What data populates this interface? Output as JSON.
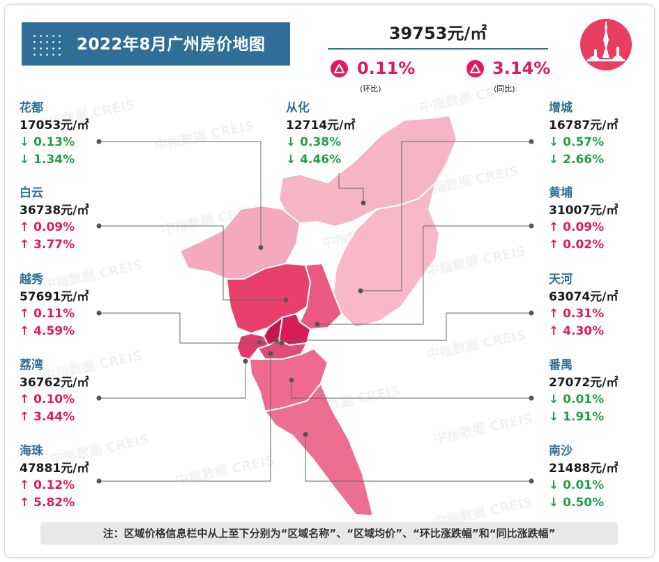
{
  "header": {
    "title": "2022年8月广州房价地图",
    "avg_price": "39753元/㎡",
    "mom": {
      "value": "0.11%",
      "caption": "(环比)",
      "direction": "up"
    },
    "yoy": {
      "value": "3.14%",
      "caption": "(同比)",
      "direction": "up"
    }
  },
  "watermark": "中指数据 CREIS",
  "colors": {
    "title_bg": "#2f6f97",
    "up": "#e0195a",
    "down": "#1f9f4a",
    "name": "#2f6f97",
    "badge": "#e0195a",
    "landmark_bg": "#e83e5f"
  },
  "icons": {
    "landmark": "canton-tower-icon",
    "up": "triangle-up-icon"
  },
  "districts": {
    "huadu": {
      "name": "花都",
      "price": "17053元/㎡",
      "mom": "↓ 0.13%",
      "yoy": "↓ 1.34%",
      "mom_dir": "down",
      "yoy_dir": "down"
    },
    "baiyun": {
      "name": "白云",
      "price": "36738元/㎡",
      "mom": "↑ 0.09%",
      "yoy": "↑ 3.77%",
      "mom_dir": "up",
      "yoy_dir": "up"
    },
    "yuexiu": {
      "name": "越秀",
      "price": "57691元/㎡",
      "mom": "↑ 0.11%",
      "yoy": "↑ 4.59%",
      "mom_dir": "up",
      "yoy_dir": "up"
    },
    "liwan": {
      "name": "荔湾",
      "price": "36762元/㎡",
      "mom": "↑ 0.10%",
      "yoy": "↑ 3.44%",
      "mom_dir": "up",
      "yoy_dir": "up"
    },
    "haizhu": {
      "name": "海珠",
      "price": "47881元/㎡",
      "mom": "↑ 0.12%",
      "yoy": "↑ 5.82%",
      "mom_dir": "up",
      "yoy_dir": "up"
    },
    "conghua": {
      "name": "从化",
      "price": "12714元/㎡",
      "mom": "↓ 0.38%",
      "yoy": "↓ 4.46%",
      "mom_dir": "down",
      "yoy_dir": "down"
    },
    "zengcheng": {
      "name": "增城",
      "price": "16787元/㎡",
      "mom": "↓ 0.57%",
      "yoy": "↓ 2.66%",
      "mom_dir": "down",
      "yoy_dir": "down"
    },
    "huangpu": {
      "name": "黄埔",
      "price": "31007元/㎡",
      "mom": "↑ 0.09%",
      "yoy": "↑ 0.02%",
      "mom_dir": "up",
      "yoy_dir": "up"
    },
    "tianhe": {
      "name": "天河",
      "price": "63074元/㎡",
      "mom": "↑ 0.31%",
      "yoy": "↑ 4.30%",
      "mom_dir": "up",
      "yoy_dir": "up"
    },
    "panyu": {
      "name": "番禺",
      "price": "27072元/㎡",
      "mom": "↓ 0.01%",
      "yoy": "↓ 1.91%",
      "mom_dir": "down",
      "yoy_dir": "down"
    },
    "nansha": {
      "name": "南沙",
      "price": "21488元/㎡",
      "mom": "↓ 0.01%",
      "yoy": "↓ 0.50%",
      "mom_dir": "down",
      "yoy_dir": "down"
    }
  },
  "note": "注：区域价格信息栏中从上至下分别为“区域名称”、“区域均价”、“环比涨跌幅”和“同比涨跌幅”"
}
